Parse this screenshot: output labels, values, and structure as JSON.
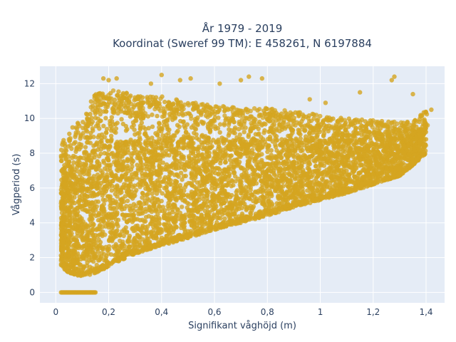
{
  "chart_data": {
    "type": "scatter",
    "title_line1": "År 1979 - 2019",
    "title_line2": "Koordinat (Sweref 99 TM): E 458261, N 6197884",
    "xlabel": "Signifikant våghöjd (m)",
    "ylabel": "Vågperiod (s)",
    "xlim": [
      -0.06,
      1.47
    ],
    "ylim": [
      -0.6,
      13.0
    ],
    "xticks": [
      0,
      0.2,
      0.4,
      0.6,
      0.8,
      1,
      1.2,
      1.4
    ],
    "xtick_labels": [
      "0",
      "0,2",
      "0,4",
      "0,6",
      "0,8",
      "1",
      "1,2",
      "1,4"
    ],
    "yticks": [
      0,
      2,
      4,
      6,
      8,
      10,
      12
    ],
    "ytick_labels": [
      "0",
      "2",
      "4",
      "6",
      "8",
      "10",
      "12"
    ],
    "grid": true,
    "colors": {
      "marker": "#d4a520",
      "plot_bg": "#e5ecf6",
      "grid": "#ffffff",
      "text": "#2a3f5f"
    },
    "bands": [
      {
        "x": 0.02,
        "y_min": 1.5,
        "y_max": 8.5
      },
      {
        "x": 0.05,
        "y_min": 1.1,
        "y_max": 9.3
      },
      {
        "x": 0.1,
        "y_min": 0.9,
        "y_max": 10.0
      },
      {
        "x": 0.15,
        "y_min": 1.1,
        "y_max": 11.5
      },
      {
        "x": 0.2,
        "y_min": 1.5,
        "y_max": 11.8
      },
      {
        "x": 0.3,
        "y_min": 2.2,
        "y_max": 11.3
      },
      {
        "x": 0.4,
        "y_min": 2.7,
        "y_max": 11.3
      },
      {
        "x": 0.5,
        "y_min": 3.1,
        "y_max": 11.0
      },
      {
        "x": 0.6,
        "y_min": 3.6,
        "y_max": 10.8
      },
      {
        "x": 0.7,
        "y_min": 4.0,
        "y_max": 10.6
      },
      {
        "x": 0.8,
        "y_min": 4.4,
        "y_max": 10.6
      },
      {
        "x": 0.9,
        "y_min": 4.9,
        "y_max": 10.4
      },
      {
        "x": 1.0,
        "y_min": 5.3,
        "y_max": 10.2
      },
      {
        "x": 1.1,
        "y_min": 5.7,
        "y_max": 10.0
      },
      {
        "x": 1.2,
        "y_min": 6.2,
        "y_max": 9.9
      },
      {
        "x": 1.3,
        "y_min": 6.7,
        "y_max": 9.8
      },
      {
        "x": 1.35,
        "y_min": 7.3,
        "y_max": 9.8
      },
      {
        "x": 1.4,
        "y_min": 8.0,
        "y_max": 10.5
      }
    ],
    "zero_points": {
      "x_min": 0.02,
      "x_max": 0.15,
      "y": 0
    },
    "outliers": [
      {
        "x": 0.18,
        "y": 12.3
      },
      {
        "x": 0.2,
        "y": 12.2
      },
      {
        "x": 0.23,
        "y": 12.3
      },
      {
        "x": 0.4,
        "y": 12.5
      },
      {
        "x": 0.36,
        "y": 12.0
      },
      {
        "x": 0.47,
        "y": 12.2
      },
      {
        "x": 0.51,
        "y": 12.3
      },
      {
        "x": 0.62,
        "y": 12.0
      },
      {
        "x": 0.7,
        "y": 12.2
      },
      {
        "x": 0.73,
        "y": 12.4
      },
      {
        "x": 0.78,
        "y": 12.3
      },
      {
        "x": 1.15,
        "y": 11.5
      },
      {
        "x": 1.28,
        "y": 12.4
      },
      {
        "x": 1.27,
        "y": 12.2
      },
      {
        "x": 1.35,
        "y": 11.4
      },
      {
        "x": 1.42,
        "y": 10.5
      },
      {
        "x": 1.02,
        "y": 10.9
      },
      {
        "x": 0.96,
        "y": 11.1
      }
    ]
  }
}
